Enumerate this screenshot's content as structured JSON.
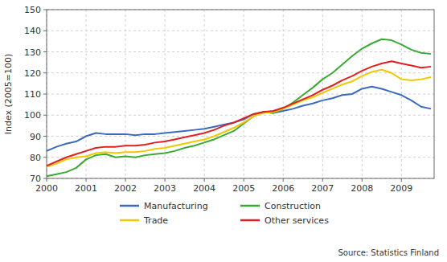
{
  "chart_data": {
    "type": "line",
    "y_label": "Index (2005=100)",
    "source": "Source: Statistics Finland",
    "xlim": [
      2000.0,
      2009.83
    ],
    "xticks": [
      2000,
      2001,
      2002,
      2003,
      2004,
      2005,
      2006,
      2007,
      2008,
      2009
    ],
    "ylim": [
      70,
      150
    ],
    "yticks": [
      70,
      80,
      90,
      100,
      110,
      120,
      130,
      140,
      150
    ],
    "grid": true,
    "legend": "bottom",
    "x": [
      2000.0,
      2000.25,
      2000.5,
      2000.75,
      2001.0,
      2001.25,
      2001.5,
      2001.75,
      2002.0,
      2002.25,
      2002.5,
      2002.75,
      2003.0,
      2003.25,
      2003.5,
      2003.75,
      2004.0,
      2004.25,
      2004.5,
      2004.75,
      2005.0,
      2005.25,
      2005.5,
      2005.75,
      2006.0,
      2006.25,
      2006.5,
      2006.75,
      2007.0,
      2007.25,
      2007.5,
      2007.75,
      2008.0,
      2008.25,
      2008.5,
      2008.75,
      2009.0,
      2009.25,
      2009.5,
      2009.75
    ],
    "series": [
      {
        "name": "Manufacturing",
        "color": "#3c6abf",
        "values": [
          83.0,
          85.0,
          86.5,
          87.5,
          90.0,
          91.5,
          91.0,
          91.0,
          91.0,
          90.5,
          91.0,
          91.0,
          91.5,
          92.0,
          92.5,
          93.0,
          93.5,
          94.5,
          95.5,
          96.5,
          98.0,
          100.5,
          101.5,
          101.0,
          102.0,
          103.0,
          104.5,
          105.5,
          107.0,
          108.0,
          109.5,
          110.0,
          112.5,
          113.5,
          112.5,
          111.0,
          109.5,
          107.0,
          104.0,
          103.0
        ]
      },
      {
        "name": "Construction",
        "color": "#3aaa35",
        "values": [
          71.0,
          72.0,
          73.0,
          75.0,
          79.0,
          81.0,
          81.5,
          80.0,
          80.5,
          80.0,
          81.0,
          81.5,
          82.0,
          83.0,
          84.5,
          85.5,
          87.0,
          88.5,
          90.5,
          92.5,
          96.0,
          99.5,
          101.5,
          101.0,
          103.0,
          106.0,
          109.5,
          113.0,
          117.0,
          120.0,
          124.0,
          128.0,
          131.5,
          134.0,
          136.0,
          135.5,
          133.5,
          131.0,
          129.5,
          129.0
        ]
      },
      {
        "name": "Trade",
        "color": "#f0c800",
        "values": [
          75.5,
          77.0,
          79.0,
          80.0,
          80.5,
          82.0,
          82.5,
          82.0,
          82.5,
          82.5,
          83.0,
          84.0,
          84.5,
          85.5,
          86.5,
          87.5,
          88.5,
          90.0,
          92.0,
          94.0,
          96.5,
          99.5,
          101.0,
          101.5,
          103.0,
          105.0,
          107.0,
          108.5,
          110.5,
          112.5,
          114.5,
          116.0,
          118.5,
          120.5,
          121.5,
          120.0,
          117.0,
          116.5,
          117.0,
          118.0
        ]
      },
      {
        "name": "Other services",
        "color": "#e02020",
        "values": [
          76.0,
          78.0,
          80.0,
          81.5,
          83.0,
          84.5,
          85.0,
          85.0,
          85.5,
          85.5,
          86.0,
          87.0,
          87.5,
          88.5,
          89.5,
          90.5,
          91.5,
          93.0,
          95.0,
          96.5,
          98.5,
          100.5,
          101.5,
          102.0,
          103.5,
          105.5,
          107.5,
          109.5,
          112.0,
          114.0,
          116.5,
          118.5,
          121.0,
          123.0,
          124.5,
          125.5,
          124.5,
          123.5,
          122.5,
          123.0
        ]
      }
    ]
  }
}
